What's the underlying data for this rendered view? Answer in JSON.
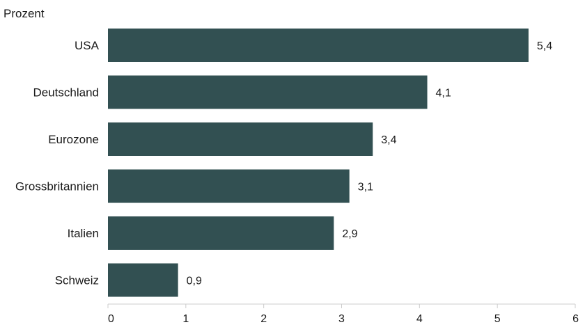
{
  "chart_data": {
    "type": "bar",
    "orientation": "horizontal",
    "unit_label": "Prozent",
    "categories": [
      "USA",
      "Deutschland",
      "Eurozone",
      "Grossbritannien",
      "Italien",
      "Schweiz"
    ],
    "values": [
      5.4,
      4.1,
      3.4,
      3.1,
      2.9,
      0.9
    ],
    "value_labels": [
      "5,4",
      "4,1",
      "3,4",
      "3,1",
      "2,9",
      "0,9"
    ],
    "xlim": [
      0,
      6
    ],
    "xticks": [
      0,
      1,
      2,
      3,
      4,
      5,
      6
    ],
    "xtick_labels": [
      "0",
      "1",
      "2",
      "3",
      "4",
      "5",
      "6"
    ],
    "grid": false,
    "colors": {
      "bar": "#325052",
      "axis": "#cccccc",
      "text": "#1a1a1a"
    }
  }
}
